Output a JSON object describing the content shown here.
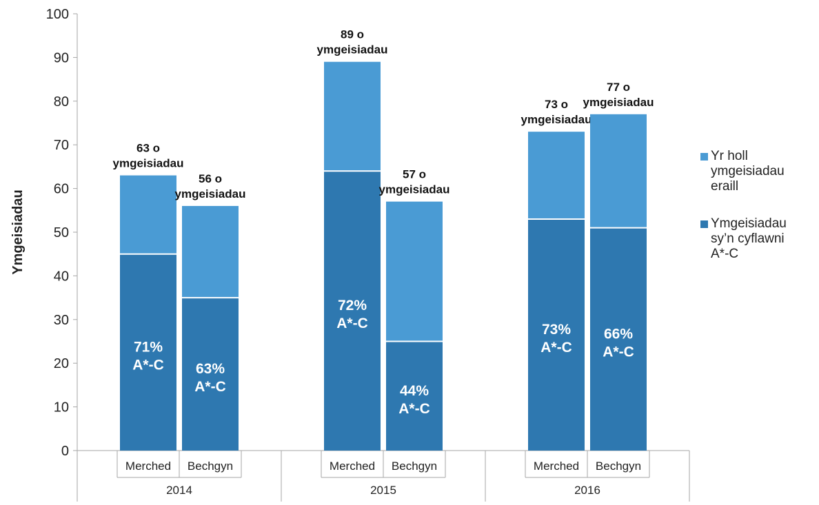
{
  "chart_data": {
    "type": "bar",
    "stacked": true,
    "ylabel": "Ymgeisiadau",
    "ylim": [
      0,
      100
    ],
    "yticks": [
      0,
      10,
      20,
      30,
      40,
      50,
      60,
      70,
      80,
      90,
      100
    ],
    "groups": [
      "2014",
      "2015",
      "2016"
    ],
    "categories": [
      "Merched",
      "Bechgyn"
    ],
    "series": [
      {
        "name": "Ymgeisiadau sy’n cyflawni A*-C",
        "color": "#2e78b0"
      },
      {
        "name": "Yr holl ymgeisiadau eraill",
        "color": "#4a9bd4"
      }
    ],
    "bars": [
      {
        "group": "2014",
        "category": "Merched",
        "achieving": 45,
        "others": 18,
        "total_label": "63 o ymgeisiadau",
        "pct_label": "71%",
        "grade_label": "A*-C"
      },
      {
        "group": "2014",
        "category": "Bechgyn",
        "achieving": 35,
        "others": 21,
        "total_label": "56 o ymgeisiadau",
        "pct_label": "63%",
        "grade_label": "A*-C"
      },
      {
        "group": "2015",
        "category": "Merched",
        "achieving": 64,
        "others": 25,
        "total_label": "89 o ymgeisiadau",
        "pct_label": "72%",
        "grade_label": "A*-C"
      },
      {
        "group": "2015",
        "category": "Bechgyn",
        "achieving": 25,
        "others": 32,
        "total_label": "57 o ymgeisiadau",
        "pct_label": "44%",
        "grade_label": "A*-C"
      },
      {
        "group": "2016",
        "category": "Merched",
        "achieving": 53,
        "others": 20,
        "total_label": "73 o ymgeisiadau",
        "pct_label": "73%",
        "grade_label": "A*-C"
      },
      {
        "group": "2016",
        "category": "Bechgyn",
        "achieving": 51,
        "others": 26,
        "total_label": "77 o ymgeisiadau",
        "pct_label": "66%",
        "grade_label": "A*-C"
      }
    ],
    "legend_position": "right"
  },
  "legend": {
    "items": [
      {
        "label": "Yr holl\nymgeisiadau\neraill",
        "color": "#4a9bd4"
      },
      {
        "label": "Ymgeisiadau\nsy’n cyflawni\nA*-C",
        "color": "#2e78b0"
      }
    ]
  }
}
